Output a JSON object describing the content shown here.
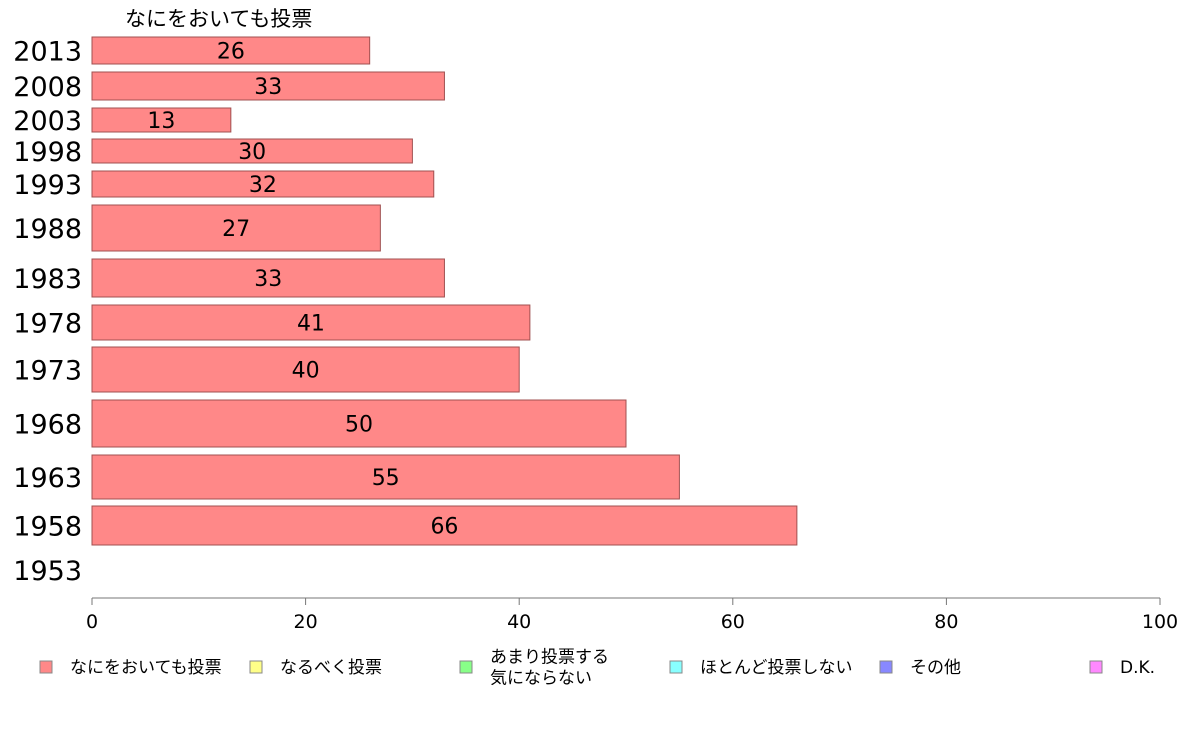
{
  "chart_data": {
    "type": "bar",
    "orientation": "horizontal",
    "title": "なにをおいても投票",
    "categories": [
      "2013",
      "2008",
      "2003",
      "1998",
      "1993",
      "1988",
      "1983",
      "1978",
      "1973",
      "1968",
      "1963",
      "1958",
      "1953"
    ],
    "series": [
      {
        "name": "なにをおいても投票",
        "values": [
          26,
          33,
          13,
          30,
          32,
          27,
          33,
          41,
          40,
          50,
          55,
          66,
          null
        ]
      }
    ],
    "xlim": [
      0,
      100
    ],
    "xticks": [
      0,
      20,
      40,
      60,
      80,
      100
    ],
    "grid": false,
    "legend_placement": "bottom",
    "legend": [
      {
        "lines": [
          "なにをおいても投票"
        ],
        "color": "#ff8888"
      },
      {
        "lines": [
          "なるべく投票"
        ],
        "color": "#ffff88"
      },
      {
        "lines": [
          "あまり投票する",
          "気にならない"
        ],
        "color": "#88ff88"
      },
      {
        "lines": [
          "ほとんど投票しない"
        ],
        "color": "#88ffff"
      },
      {
        "lines": [
          "その他"
        ],
        "color": "#8888ff"
      },
      {
        "lines": [
          "D.K."
        ],
        "color": "#ff88ff"
      }
    ],
    "bar_color": "#ff8888",
    "bar_stroke": "#a05050"
  }
}
